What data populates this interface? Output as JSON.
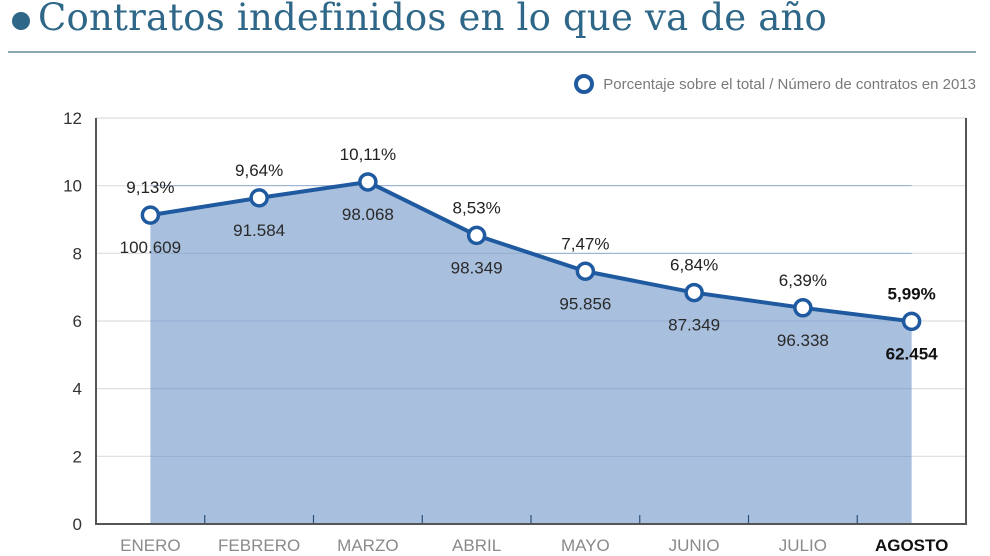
{
  "header": {
    "title": "Contratos indefinidos en lo que va de año",
    "accent_color": "#2f6788"
  },
  "legend": {
    "label": "Porcentaje sobre el total / Número de contratos en 2013",
    "marker_color": "#1f5aa0"
  },
  "chart_data": {
    "type": "area",
    "title": "Contratos indefinidos en lo que va de año",
    "xlabel": "",
    "ylabel": "",
    "ylim": [
      0,
      12
    ],
    "yticks": [
      0,
      2,
      4,
      6,
      8,
      10,
      12
    ],
    "grid": true,
    "legend_position": "top-right",
    "categories": [
      "ENERO",
      "FEBRERO",
      "MARZO",
      "ABRIL",
      "MAYO",
      "JUNIO",
      "JULIO",
      "AGOSTO"
    ],
    "highlight_category": "AGOSTO",
    "series": [
      {
        "name": "Porcentaje sobre el total",
        "values": [
          9.13,
          9.64,
          10.11,
          8.53,
          7.47,
          6.84,
          6.39,
          5.99
        ],
        "labels": [
          "9,13%",
          "9,64%",
          "10,11%",
          "8,53%",
          "7,47%",
          "6,84%",
          "6,39%",
          "5,99%"
        ]
      },
      {
        "name": "Número de contratos en 2013",
        "values": [
          100609,
          91584,
          98068,
          98349,
          95856,
          87349,
          96338,
          62454
        ],
        "labels": [
          "100.609",
          "91.584",
          "98.068",
          "98.349",
          "95.856",
          "87.349",
          "96.338",
          "62.454"
        ]
      }
    ],
    "colors": {
      "line": "#1f5aa0",
      "area": "#a3bcdb",
      "grid": "#dddddd",
      "axis": "#555555"
    }
  }
}
